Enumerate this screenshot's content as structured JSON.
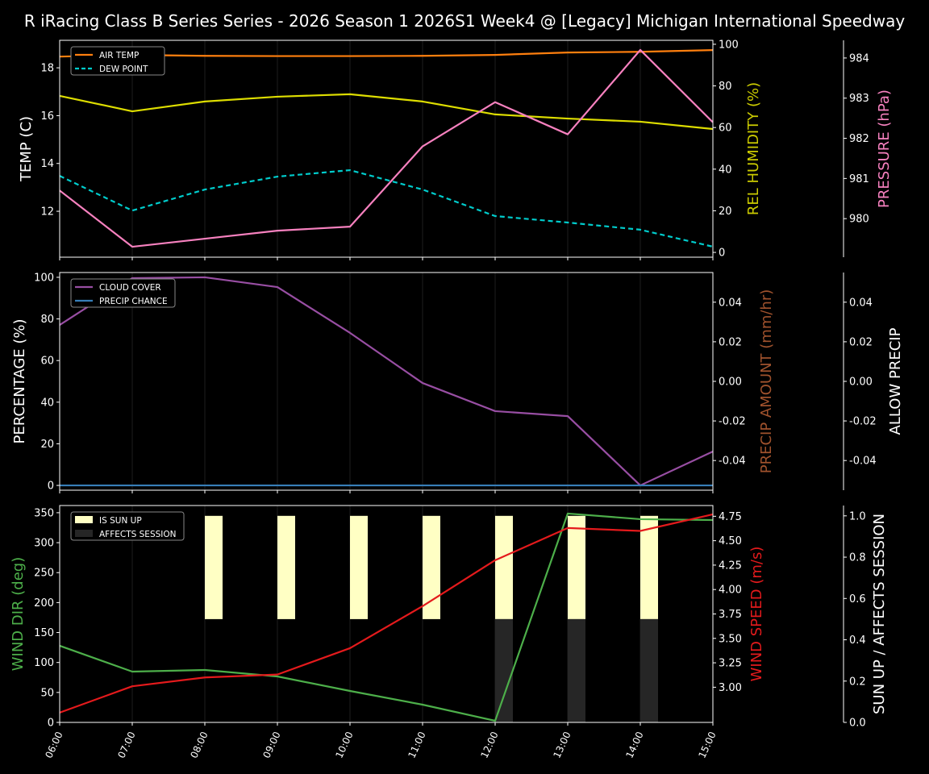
{
  "title": "R iRacing Class B Series Series - 2026 Season 1 2026S1 Week4 @ [Legacy] Michigan International Speedway",
  "chart_data": [
    {
      "type": "line",
      "x": [
        "06:00",
        "07:00",
        "08:00",
        "09:00",
        "10:00",
        "11:00",
        "12:00",
        "13:00",
        "14:00",
        "15:00"
      ],
      "axes": [
        {
          "id": "temp",
          "side": "left",
          "label": "TEMP (C)",
          "label_color": "#ffffff",
          "ylim": [
            10.08,
            19.15
          ],
          "ticks": [
            12,
            14,
            16,
            18
          ]
        },
        {
          "id": "hum",
          "side": "right",
          "label": "REL HUMIDITY (%)",
          "label_color": "#cccc00",
          "ylim": [
            -2.3,
            101.9
          ],
          "ticks": [
            0,
            20,
            40,
            60,
            80,
            100
          ]
        },
        {
          "id": "pres",
          "side": "far-right",
          "label": "PRESSURE (hPa)",
          "label_color": "#f781bf",
          "ylim": [
            979.04,
            984.44
          ],
          "ticks": [
            980,
            981,
            982,
            983,
            984
          ]
        }
      ],
      "series": [
        {
          "name": "AIR TEMP",
          "axis": "temp",
          "color": "#ff7f0e",
          "dash": false,
          "values": [
            18.47,
            18.54,
            18.5,
            18.49,
            18.49,
            18.5,
            18.54,
            18.64,
            18.67,
            18.74
          ]
        },
        {
          "name": "DEW POINT",
          "axis": "temp",
          "color": "#00cccc",
          "dash": true,
          "values": [
            13.48,
            12.03,
            12.91,
            13.45,
            13.72,
            12.91,
            11.8,
            11.53,
            11.23,
            10.52
          ]
        },
        {
          "axis": "hum",
          "color": "#dddd00",
          "dash": false,
          "values": [
            75.2,
            67.8,
            72.5,
            74.8,
            76.0,
            72.5,
            66.3,
            64.3,
            62.8,
            59.3
          ]
        },
        {
          "axis": "pres",
          "color": "#f781bf",
          "dash": false,
          "values": [
            980.7,
            979.3,
            979.5,
            979.7,
            979.8,
            981.8,
            982.9,
            982.1,
            984.2,
            982.4
          ]
        }
      ],
      "legend": [
        "AIR TEMP",
        "DEW POINT"
      ],
      "legend_position": "upper-left",
      "grid": "vertical"
    },
    {
      "type": "line",
      "x": [
        "06:00",
        "07:00",
        "08:00",
        "09:00",
        "10:00",
        "11:00",
        "12:00",
        "13:00",
        "14:00",
        "15:00"
      ],
      "axes": [
        {
          "id": "pct",
          "side": "left",
          "label": "PERCENTAGE (%)",
          "label_color": "#ffffff",
          "ylim": [
            -2.3,
            102.3
          ],
          "ticks": [
            0,
            20,
            40,
            60,
            80,
            100
          ]
        },
        {
          "id": "pamt",
          "side": "right",
          "label": "PRECIP AMOUNT (mm/hr)",
          "label_color": "#a0522d",
          "ylim": [
            -0.055,
            0.055
          ],
          "ticks": [
            "-0.04",
            "-0.02",
            "0.00",
            "0.02",
            "0.04"
          ]
        },
        {
          "id": "allow",
          "side": "far-right",
          "label": "ALLOW PRECIP",
          "label_color": "#ffffff",
          "ylim": [
            -0.055,
            0.055
          ],
          "ticks": [
            "-0.04",
            "-0.02",
            "0.00",
            "0.02",
            "0.04"
          ]
        }
      ],
      "series": [
        {
          "name": "CLOUD COVER",
          "axis": "pct",
          "color": "#984ea3",
          "dash": false,
          "values": [
            77.1,
            99.6,
            100,
            95.3,
            73.3,
            49.2,
            35.7,
            33.3,
            0,
            16.3
          ]
        },
        {
          "name": "PRECIP CHANCE",
          "axis": "pct",
          "color": "#377eb8",
          "dash": false,
          "values": [
            0,
            0,
            0,
            0,
            0,
            0,
            0,
            0,
            0,
            0
          ]
        }
      ],
      "legend": [
        "CLOUD COVER",
        "PRECIP CHANCE"
      ],
      "legend_position": "upper-left",
      "grid": "vertical"
    },
    {
      "type": "line",
      "x": [
        "06:00",
        "07:00",
        "08:00",
        "09:00",
        "10:00",
        "11:00",
        "12:00",
        "13:00",
        "14:00",
        "15:00"
      ],
      "axes": [
        {
          "id": "wdir",
          "side": "left",
          "label": "WIND DIR (deg)",
          "label_color": "#4daf4a",
          "ylim": [
            0,
            362
          ],
          "ticks": [
            0,
            50,
            100,
            150,
            200,
            250,
            300,
            350
          ]
        },
        {
          "id": "wspd",
          "side": "right",
          "label": "WIND SPEED (m/s)",
          "label_color": "#e41a1c",
          "ylim": [
            2.64,
            4.86
          ],
          "ticks": [
            "3.00",
            "3.25",
            "3.50",
            "3.75",
            "4.00",
            "4.25",
            "4.50",
            "4.75"
          ]
        },
        {
          "id": "sun",
          "side": "far-right",
          "label": "SUN UP / AFFECTS SESSION",
          "label_color": "#ffffff",
          "ylim": [
            0,
            1.05
          ],
          "ticks": [
            "0.0",
            "0.2",
            "0.4",
            "0.6",
            "0.8",
            "1.0"
          ]
        }
      ],
      "series": [
        {
          "axis": "wdir",
          "color": "#4daf4a",
          "dash": false,
          "values": [
            127.9,
            84.8,
            87.5,
            76.7,
            52.5,
            29.6,
            2.7,
            348.6,
            339.2,
            337.8
          ]
        },
        {
          "axis": "wspd",
          "color": "#e41a1c",
          "dash": false,
          "values": [
            2.74,
            3.01,
            3.1,
            3.13,
            3.4,
            3.83,
            4.3,
            4.63,
            4.6,
            4.77
          ]
        }
      ],
      "bars": [
        {
          "name": "IS SUN UP",
          "axis": "sun",
          "color": "#ffffc4",
          "values": [
            0,
            0,
            1,
            1,
            1,
            1,
            1,
            1,
            1,
            0
          ]
        },
        {
          "name": "AFFECTS SESSION",
          "axis": "sun",
          "color": "#262626",
          "values": [
            0,
            0,
            0,
            0,
            0,
            0,
            1,
            1,
            1,
            0
          ]
        }
      ],
      "legend": [
        "IS SUN UP",
        "AFFECTS SESSION"
      ],
      "legend_position": "upper-left",
      "grid": "vertical"
    }
  ]
}
